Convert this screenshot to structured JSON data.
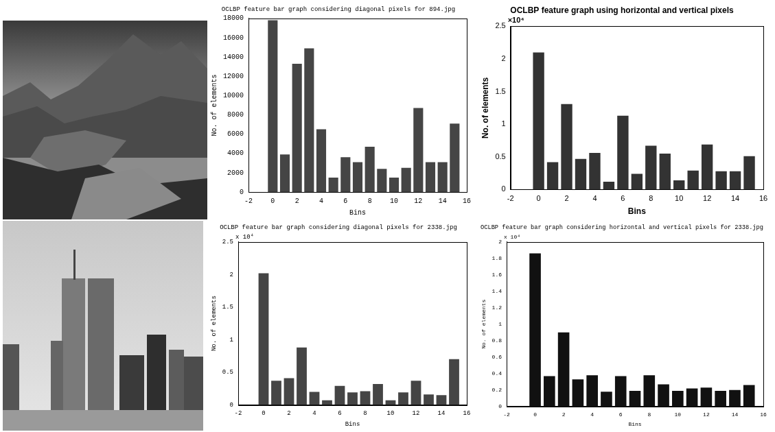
{
  "chart_data": [
    {
      "type": "bar",
      "title": "OCLBP feature bar graph considering diagonal pixels for 894.jpg",
      "x_label": "Bins",
      "y_label": "No. of elements",
      "x": [
        0,
        1,
        2,
        3,
        4,
        5,
        6,
        7,
        8,
        9,
        10,
        11,
        12,
        13,
        14,
        15
      ],
      "values": [
        17800,
        3900,
        13300,
        14900,
        6500,
        1500,
        3600,
        3100,
        4700,
        2400,
        1500,
        2500,
        8700,
        3100,
        3100,
        7100
      ],
      "color": "#454545",
      "xlim": [
        -2,
        16
      ],
      "xticks": [
        -2,
        0,
        2,
        4,
        6,
        8,
        10,
        12,
        14,
        16
      ],
      "ylim": [
        0,
        18000
      ],
      "yticks": [
        0,
        2000,
        4000,
        6000,
        8000,
        10000,
        12000,
        14000,
        16000,
        18000
      ],
      "grid": false
    },
    {
      "type": "bar",
      "title": "OCLBP feature graph using horizontal and vertical pixels",
      "annotation": "×10⁴",
      "x_label": "Bins",
      "y_label": "No. of elements",
      "x": [
        0,
        1,
        2,
        3,
        4,
        5,
        6,
        7,
        8,
        9,
        10,
        11,
        12,
        13,
        14,
        15
      ],
      "values": [
        2.1,
        0.42,
        1.31,
        0.47,
        0.56,
        0.12,
        1.13,
        0.24,
        0.67,
        0.55,
        0.14,
        0.29,
        0.69,
        0.28,
        0.28,
        0.51
      ],
      "color": "#333333",
      "xlim": [
        -2,
        16
      ],
      "xticks": [
        -2,
        0,
        2,
        4,
        6,
        8,
        10,
        12,
        14,
        16
      ],
      "ylim": [
        0,
        2.5
      ],
      "yticks": [
        0,
        0.5,
        1,
        1.5,
        2,
        2.5
      ],
      "grid": false
    },
    {
      "type": "bar",
      "title": "OCLBP feature bar graph considering diagonal pixels for 2338.jpg",
      "annotation": "x 10⁴",
      "x_label": "Bins",
      "y_label": "No. of elements",
      "x": [
        0,
        1,
        2,
        3,
        4,
        5,
        6,
        7,
        8,
        9,
        10,
        11,
        12,
        13,
        14,
        15
      ],
      "values": [
        2.02,
        0.37,
        0.41,
        0.88,
        0.2,
        0.07,
        0.29,
        0.19,
        0.21,
        0.32,
        0.07,
        0.19,
        0.37,
        0.16,
        0.15,
        0.7
      ],
      "color": "#454545",
      "xlim": [
        -2,
        16
      ],
      "xticks": [
        -2,
        0,
        2,
        4,
        6,
        8,
        10,
        12,
        14,
        16
      ],
      "ylim": [
        0,
        2.5
      ],
      "yticks": [
        0,
        0.5,
        1,
        1.5,
        2,
        2.5
      ],
      "grid": false
    },
    {
      "type": "bar",
      "title": "OCLBP feature bar graph considering horizontal and vertical pixels for 2338.jpg",
      "annotation": "x 10⁴",
      "x_label": "Bins",
      "y_label": "No. of elements",
      "x": [
        0,
        1,
        2,
        3,
        4,
        5,
        6,
        7,
        8,
        9,
        10,
        11,
        12,
        13,
        14,
        15
      ],
      "values": [
        1.86,
        0.37,
        0.9,
        0.33,
        0.38,
        0.18,
        0.37,
        0.19,
        0.38,
        0.27,
        0.19,
        0.22,
        0.23,
        0.19,
        0.2,
        0.26
      ],
      "color": "#111111",
      "xlim": [
        -2,
        16
      ],
      "xticks": [
        -2,
        0,
        2,
        4,
        6,
        8,
        10,
        12,
        14,
        16
      ],
      "ylim": [
        0,
        2
      ],
      "yticks": [
        0,
        0.2,
        0.4,
        0.6,
        0.8,
        1,
        1.2,
        1.4,
        1.6,
        1.8,
        2
      ],
      "grid": false
    }
  ]
}
